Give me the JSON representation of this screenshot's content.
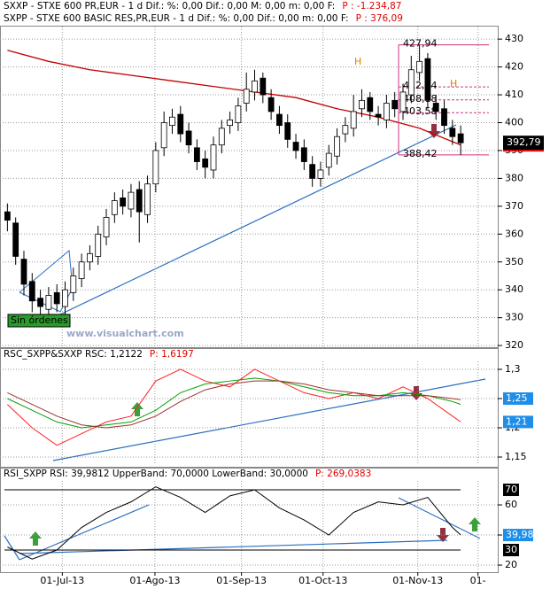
{
  "chart_data": [
    {
      "type": "candlestick",
      "header": [
        "SXXP - STXE 600 PR,EUR -  1 d Dif.: %: 0,00 Dif.: 0,00 M: 0,00 m: 0,00 F:",
        "SXPP - STXE 600 BASIC RES,PR,EUR -  1 d Dif.: %: 0,00 Dif.: 0,00 m: 0,00 F:"
      ],
      "header_price": [
        "P : -1.234,87",
        "P : 376,09"
      ],
      "open": [
        368,
        364,
        351,
        343,
        337,
        333,
        339,
        334,
        339,
        344,
        350,
        352,
        359,
        367,
        373,
        369,
        376,
        367,
        378,
        391,
        399,
        403,
        397,
        391,
        387,
        383,
        392,
        399,
        400,
        407,
        411,
        416,
        409,
        403,
        400,
        393,
        391,
        385,
        380,
        384,
        388,
        396,
        398,
        405,
        409,
        403,
        401,
        408,
        404,
        410,
        418,
        423,
        407,
        405,
        398,
        396
      ],
      "high": [
        371,
        366,
        354,
        346,
        340,
        341,
        342,
        343,
        348,
        353,
        356,
        363,
        369,
        375,
        376,
        378,
        379,
        381,
        393,
        404,
        405,
        406,
        400,
        394,
        390,
        395,
        401,
        404,
        409,
        418,
        419,
        418,
        412,
        406,
        403,
        396,
        394,
        388,
        386,
        392,
        398,
        402,
        410,
        412,
        411,
        406,
        410,
        411,
        414,
        424,
        427.94,
        425,
        410,
        408,
        401,
        399
      ],
      "low": [
        361,
        349,
        338,
        332,
        330,
        330,
        332,
        331,
        336,
        341,
        347,
        349,
        356,
        364,
        367,
        366,
        357,
        364,
        375,
        388,
        396,
        393,
        389,
        383,
        380,
        380,
        389,
        396,
        397,
        404,
        408,
        407,
        401,
        396,
        391,
        387,
        383,
        377,
        377,
        381,
        385,
        393,
        395,
        402,
        401,
        399,
        398,
        402,
        401,
        407,
        415,
        405,
        401,
        396,
        392,
        388.42
      ],
      "close": [
        365,
        352,
        342,
        336,
        334,
        338,
        335,
        340,
        345,
        350,
        353,
        360,
        366,
        372,
        370,
        375,
        368,
        378,
        390,
        400,
        402,
        396,
        392,
        386,
        384,
        392,
        398,
        401,
        406,
        412,
        415,
        410,
        404,
        399,
        394,
        390,
        386,
        380,
        383,
        389,
        395,
        399,
        404,
        408,
        404,
        402,
        407,
        405,
        411,
        419,
        422,
        408,
        404,
        399,
        395,
        392.79
      ],
      "lines": [
        {
          "color": "#c00000",
          "x": [
            0,
            5,
            10,
            15,
            20,
            25,
            30,
            35,
            40,
            45,
            50,
            55
          ],
          "values": [
            426,
            422,
            419,
            417,
            415,
            413,
            411,
            409,
            405,
            402,
            398,
            392
          ]
        }
      ],
      "levels": [
        {
          "value": 427.94,
          "label": "427,94"
        },
        {
          "value": 412.84,
          "label": "412,84"
        },
        {
          "value": 408.18,
          "label": "408,18"
        },
        {
          "value": 403.58,
          "label": "403,58"
        },
        {
          "value": 388.42,
          "label": "388,42"
        }
      ],
      "last": {
        "value": 392.79,
        "label": "392,79"
      },
      "pattern_labels": [
        "H",
        "H"
      ],
      "order_status": "Sin órdenes",
      "watermark": "www.visualchart.com",
      "xlim": [
        -0.9,
        59.5
      ],
      "ylim": [
        319.4,
        434.5
      ],
      "yticks": [
        320,
        330,
        340,
        350,
        360,
        370,
        380,
        390,
        400,
        410,
        420,
        430
      ]
    },
    {
      "type": "line",
      "header": "RSC_SXPP&SXXP RSC: 1,2122",
      "header_price": "P: 1,6197",
      "x": [
        0,
        3,
        6,
        9,
        12,
        15,
        18,
        21,
        24,
        27,
        30,
        33,
        36,
        39,
        42,
        45,
        48,
        51,
        54,
        55
      ],
      "series": [
        {
          "color": "#ff2020",
          "values": [
            1.24,
            1.2,
            1.17,
            1.19,
            1.21,
            1.22,
            1.28,
            1.3,
            1.28,
            1.27,
            1.3,
            1.28,
            1.26,
            1.25,
            1.26,
            1.25,
            1.27,
            1.25,
            1.22,
            1.21
          ]
        },
        {
          "color": "#00a000",
          "values": [
            1.25,
            1.23,
            1.21,
            1.2,
            1.205,
            1.21,
            1.23,
            1.26,
            1.275,
            1.28,
            1.285,
            1.28,
            1.27,
            1.26,
            1.255,
            1.255,
            1.26,
            1.255,
            1.245,
            1.24
          ]
        },
        {
          "color": "#a03030",
          "values": [
            1.26,
            1.24,
            1.22,
            1.205,
            1.2,
            1.205,
            1.22,
            1.245,
            1.265,
            1.275,
            1.28,
            1.28,
            1.275,
            1.265,
            1.26,
            1.255,
            1.255,
            1.255,
            1.25,
            1.248
          ]
        }
      ],
      "badges": [
        {
          "value": 1.25,
          "label": "1,25"
        },
        {
          "value": 1.21,
          "label": "1,21"
        }
      ],
      "xlim": [
        -0.9,
        59.5
      ],
      "ylim": [
        1.1364,
        1.3136
      ],
      "yticks": [
        {
          "value": 1.3,
          "label": "1,3"
        },
        {
          "value": 1.25,
          "label": "1,25"
        },
        {
          "value": 1.2,
          "label": "1,2"
        },
        {
          "value": 1.15,
          "label": "1,15"
        }
      ]
    },
    {
      "type": "line",
      "header": "RSI_SXPP RSI: 39,9812 UpperBand: 70,0000 LowerBand: 30,0000",
      "header_price": "P: 269,0383",
      "x": [
        0,
        3,
        6,
        9,
        12,
        15,
        18,
        21,
        24,
        27,
        30,
        33,
        36,
        39,
        42,
        45,
        48,
        51,
        54,
        55
      ],
      "series": [
        {
          "color": "#000000",
          "values": [
            32,
            24,
            30,
            45,
            55,
            62,
            72,
            65,
            55,
            66,
            70,
            58,
            50,
            40,
            55,
            62,
            60,
            65,
            45,
            40
          ]
        }
      ],
      "bands": [
        70,
        30
      ],
      "badges": [
        {
          "value": 39.98,
          "label": "39,98"
        }
      ],
      "xlim": [
        -0.9,
        59.5
      ],
      "ylim": [
        15.9,
        75.9
      ],
      "yticks": [
        20,
        40,
        60
      ],
      "xticks": [
        {
          "value": 6.66,
          "label": "01-Jul-13"
        },
        {
          "value": 17.9,
          "label": "01-Ago-13"
        },
        {
          "value": 28.4,
          "label": "01-Sep-13"
        },
        {
          "value": 38.3,
          "label": "01-Oct-13"
        },
        {
          "value": 49.8,
          "label": "01-Nov-13"
        },
        {
          "value": 57.1,
          "label": "01-"
        }
      ]
    }
  ]
}
